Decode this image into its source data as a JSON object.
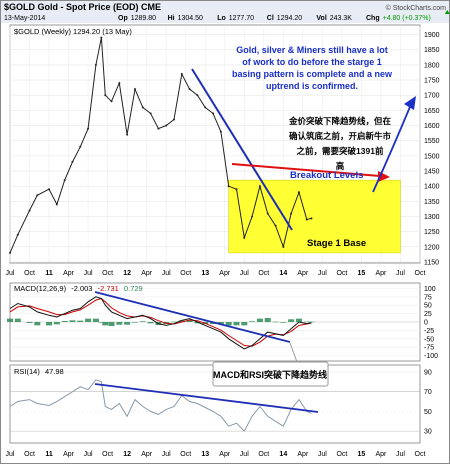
{
  "header": {
    "symbol_title": "$GOLD Gold - Spot Price (EOD) CME",
    "copyright": "© StockCharts.com",
    "date": "13-May-2014",
    "ohlc": [
      {
        "label": "Op",
        "value": "1289.80"
      },
      {
        "label": "Hi",
        "value": "1304.50"
      },
      {
        "label": "Lo",
        "value": "1277.70"
      },
      {
        "label": "Cl",
        "value": "1294.20"
      },
      {
        "label": "Vol",
        "value": "243.3K"
      },
      {
        "label": "Chg",
        "value": "+4.80 (+0.37%)"
      }
    ],
    "change_icon": "triangle-up-icon",
    "change_color": "#009900"
  },
  "colors": {
    "price": "#222222",
    "trendline": "#1f2fb5",
    "annotation_blue": "#1a2fc8",
    "box_fill": "#ffff33",
    "breakout": "#e01010",
    "macd": "#111111",
    "signal": "#cc0000",
    "histogram": "#2e8b57",
    "rsi": "#8899aa"
  },
  "chart_data": [
    {
      "type": "line",
      "panel": "price",
      "legend": "$GOLD (Weekly) 1294.20 (13 May)",
      "x_tick_labels": [
        "Jul",
        "Oct",
        "11",
        "Apr",
        "Jul",
        "Oct",
        "12",
        "Apr",
        "Jul",
        "Oct",
        "13",
        "Apr",
        "Jul",
        "Oct",
        "14",
        "Apr",
        "Jul",
        "Oct",
        "15",
        "Apr",
        "Jul",
        "Oct"
      ],
      "ylim": [
        1150,
        1925
      ],
      "y_ticks": [
        1150,
        1200,
        1250,
        1300,
        1350,
        1400,
        1450,
        1500,
        1550,
        1600,
        1650,
        1700,
        1750,
        1800,
        1850,
        1900
      ],
      "grid": true,
      "x": [
        2010.5,
        2010.6,
        2010.75,
        2010.85,
        2011.0,
        2011.1,
        2011.2,
        2011.3,
        2011.4,
        2011.5,
        2011.6,
        2011.67,
        2011.72,
        2011.8,
        2011.9,
        2012.0,
        2012.1,
        2012.2,
        2012.3,
        2012.4,
        2012.5,
        2012.6,
        2012.7,
        2012.8,
        2012.9,
        2013.0,
        2013.1,
        2013.2,
        2013.3,
        2013.4,
        2013.5,
        2013.6,
        2013.7,
        2013.8,
        2013.9,
        2014.0,
        2014.1,
        2014.2,
        2014.3,
        2014.36
      ],
      "values": [
        1180,
        1240,
        1320,
        1370,
        1390,
        1340,
        1420,
        1480,
        1530,
        1590,
        1800,
        1890,
        1700,
        1680,
        1740,
        1570,
        1720,
        1660,
        1640,
        1590,
        1600,
        1620,
        1770,
        1720,
        1700,
        1660,
        1640,
        1580,
        1400,
        1390,
        1230,
        1300,
        1400,
        1310,
        1270,
        1200,
        1310,
        1380,
        1290,
        1294
      ],
      "annotations": [
        {
          "text": "Gold, silver & Miners still have a lot of work to do before the starge 1 basing pattern is complete and a new uptrend is confirmed."
        },
        {
          "text": "金价突破下降趋势线，但在确认筑底之前，开启新牛市之前，需要突破1391前高"
        },
        {
          "text": "Breakout Levels",
          "y": 1391
        },
        {
          "text": "Stage 1 Base",
          "y_range": [
            1180,
            1420
          ]
        }
      ]
    },
    {
      "type": "line",
      "panel": "macd",
      "legend_name": "MACD(12,26,9)",
      "legend_values": [
        "-2.003",
        "-2.731",
        "0.729"
      ],
      "ylim": [
        -110,
        110
      ],
      "y_ticks": [
        -100,
        -75,
        -50,
        -25,
        0,
        25,
        50,
        75,
        100
      ],
      "series_values": {
        "macd": [
          40,
          55,
          45,
          30,
          20,
          15,
          25,
          35,
          40,
          60,
          75,
          70,
          50,
          30,
          20,
          10,
          15,
          20,
          10,
          -5,
          -10,
          -5,
          5,
          10,
          0,
          -10,
          -20,
          -30,
          -50,
          -65,
          -80,
          -70,
          -50,
          -30,
          -35,
          -40,
          -20,
          0,
          -5,
          -2
        ],
        "signal": [
          30,
          45,
          48,
          40,
          30,
          22,
          22,
          30,
          36,
          50,
          65,
          70,
          60,
          42,
          28,
          18,
          15,
          18,
          14,
          4,
          -4,
          -6,
          0,
          6,
          4,
          -4,
          -14,
          -24,
          -40,
          -55,
          -70,
          -72,
          -60,
          -42,
          -36,
          -38,
          -28,
          -10,
          -6,
          -3
        ]
      }
    },
    {
      "type": "line",
      "panel": "rsi",
      "legend_name": "RSI(14)",
      "legend_value": "47.98",
      "ylim": [
        20,
        95
      ],
      "y_ticks": [
        30,
        50,
        70,
        90
      ],
      "values": [
        55,
        60,
        62,
        58,
        56,
        60,
        65,
        70,
        75,
        72,
        82,
        80,
        55,
        52,
        58,
        45,
        62,
        55,
        50,
        47,
        52,
        55,
        66,
        60,
        58,
        54,
        50,
        45,
        35,
        38,
        30,
        45,
        55,
        45,
        40,
        35,
        52,
        62,
        50,
        48
      ],
      "annotation": "MACD和RSI突破下降趋势线"
    }
  ]
}
